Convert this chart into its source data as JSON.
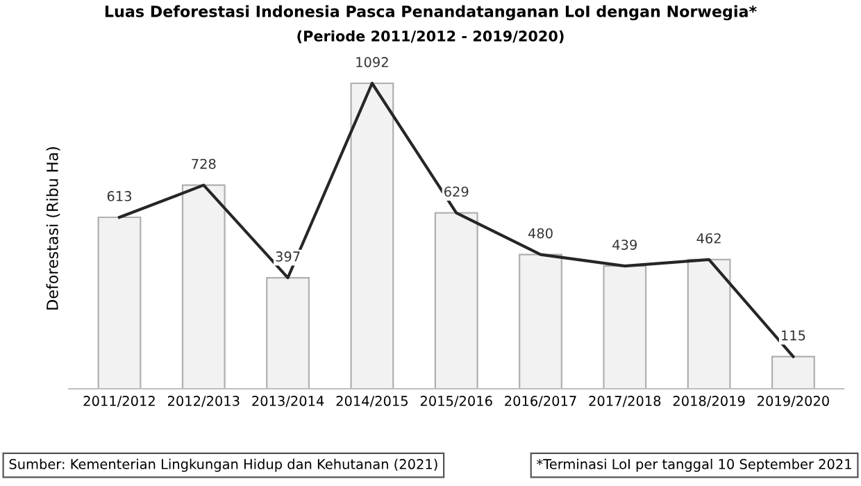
{
  "chart_data": {
    "type": "bar",
    "title": "Luas Deforestasi Indonesia Pasca Penandatanganan LoI dengan Norwegia*",
    "subtitle": "(Periode 2011/2012 - 2019/2020)",
    "ylabel": "Deforestasi (Ribu Ha)",
    "categories": [
      "2011/2012",
      "2012/2013",
      "2013/2014",
      "2014/2015",
      "2015/2016",
      "2016/2017",
      "2017/2018",
      "2018/2019",
      "2019/2020"
    ],
    "series": [
      {
        "color": "#f2f2f2",
        "values": [
          613,
          728,
          397,
          1092,
          629,
          480,
          439,
          462,
          115
        ],
        "value_labels": [
          "613",
          "728",
          "397",
          "1092",
          "629",
          "480",
          "439",
          "462",
          "115"
        ]
      },
      {
        "type": "line",
        "color": "#262626",
        "values": [
          613,
          728,
          397,
          1092,
          629,
          480,
          439,
          462,
          115
        ]
      }
    ],
    "grid": false,
    "legend": false,
    "marker": "none",
    "annotations": [
      "Sumber: Kementerian Lingkungan Hidup dan Kehutanan (2021)",
      "*Terminasi LoI per tanggal 10 September 2021"
    ]
  }
}
